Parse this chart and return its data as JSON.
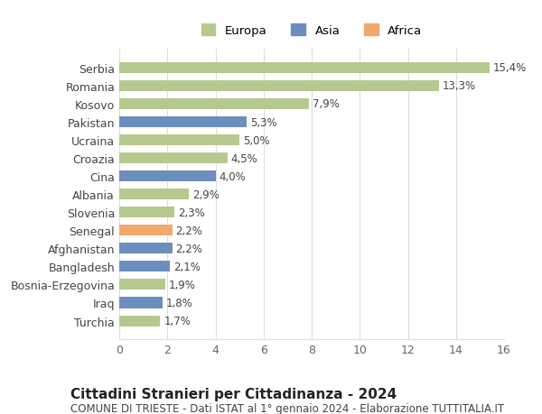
{
  "categories": [
    "Turchia",
    "Iraq",
    "Bosnia-Erzegovina",
    "Bangladesh",
    "Afghanistan",
    "Senegal",
    "Slovenia",
    "Albania",
    "Cina",
    "Croazia",
    "Ucraina",
    "Pakistan",
    "Kosovo",
    "Romania",
    "Serbia"
  ],
  "values": [
    1.7,
    1.8,
    1.9,
    2.1,
    2.2,
    2.2,
    2.3,
    2.9,
    4.0,
    4.5,
    5.0,
    5.3,
    7.9,
    13.3,
    15.4
  ],
  "labels": [
    "1,7%",
    "1,8%",
    "1,9%",
    "2,1%",
    "2,2%",
    "2,2%",
    "2,3%",
    "2,9%",
    "4,0%",
    "4,5%",
    "5,0%",
    "5,3%",
    "7,9%",
    "13,3%",
    "15,4%"
  ],
  "continents": [
    "Europa",
    "Asia",
    "Europa",
    "Asia",
    "Asia",
    "Africa",
    "Europa",
    "Europa",
    "Asia",
    "Europa",
    "Europa",
    "Asia",
    "Europa",
    "Europa",
    "Europa"
  ],
  "colors": {
    "Europa": "#b5c98e",
    "Asia": "#6b8ebf",
    "Africa": "#f0a96b"
  },
  "legend_items": [
    "Europa",
    "Asia",
    "Africa"
  ],
  "legend_colors": [
    "#b5c98e",
    "#6b8ebf",
    "#f0a96b"
  ],
  "title": "Cittadini Stranieri per Cittadinanza - 2024",
  "subtitle": "COMUNE DI TRIESTE - Dati ISTAT al 1° gennaio 2024 - Elaborazione TUTTITALIA.IT",
  "xlim": [
    0,
    16
  ],
  "xticks": [
    0,
    2,
    4,
    6,
    8,
    10,
    12,
    14,
    16
  ],
  "background_color": "#ffffff",
  "grid_color": "#dddddd",
  "bar_height": 0.6,
  "title_fontsize": 11,
  "subtitle_fontsize": 8.5,
  "tick_fontsize": 9,
  "label_fontsize": 8.5,
  "legend_fontsize": 9.5
}
